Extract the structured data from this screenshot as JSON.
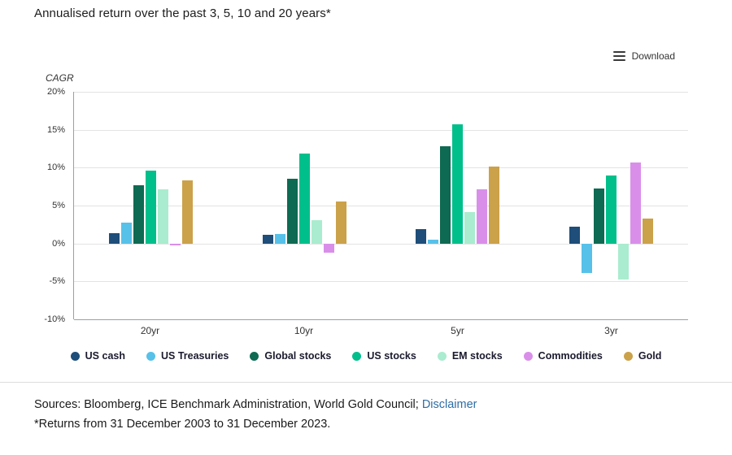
{
  "title": "Annualised return over the past 3, 5, 10 and 20 years*",
  "download_label": "Download",
  "chart_data": {
    "type": "bar",
    "categories": [
      "20yr",
      "10yr",
      "5yr",
      "3yr"
    ],
    "series": [
      {
        "name": "US cash",
        "color": "#1e4e79",
        "values": [
          1.4,
          1.1,
          1.9,
          2.2
        ]
      },
      {
        "name": "US Treasuries",
        "color": "#57c1e9",
        "values": [
          2.7,
          1.3,
          0.5,
          -3.9
        ]
      },
      {
        "name": "Global stocks",
        "color": "#0e6a52",
        "values": [
          7.7,
          8.5,
          12.8,
          7.2
        ]
      },
      {
        "name": "US stocks",
        "color": "#00bf8b",
        "values": [
          9.6,
          11.9,
          15.7,
          9.0
        ]
      },
      {
        "name": "EM stocks",
        "color": "#aaeccf",
        "values": [
          7.1,
          3.1,
          4.1,
          -4.8
        ]
      },
      {
        "name": "Commodities",
        "color": "#d98fe9",
        "values": [
          -0.2,
          -1.2,
          7.1,
          10.7
        ]
      },
      {
        "name": "Gold",
        "color": "#cba14a",
        "values": [
          8.3,
          5.5,
          10.1,
          3.3
        ]
      }
    ],
    "ylabel": "CAGR",
    "ylim": [
      -10,
      20
    ],
    "ytick_step": 5,
    "yticks": [
      "20%",
      "15%",
      "10%",
      "5%",
      "0%",
      "-5%",
      "-10%"
    ],
    "grid": true,
    "legend_position": "bottom"
  },
  "footer": {
    "sources_text": "Sources: Bloomberg, ICE Benchmark Administration, World Gold Council;",
    "disclaimer_label": "Disclaimer",
    "footnote": "*Returns from 31 December 2003 to 31 December 2023."
  }
}
